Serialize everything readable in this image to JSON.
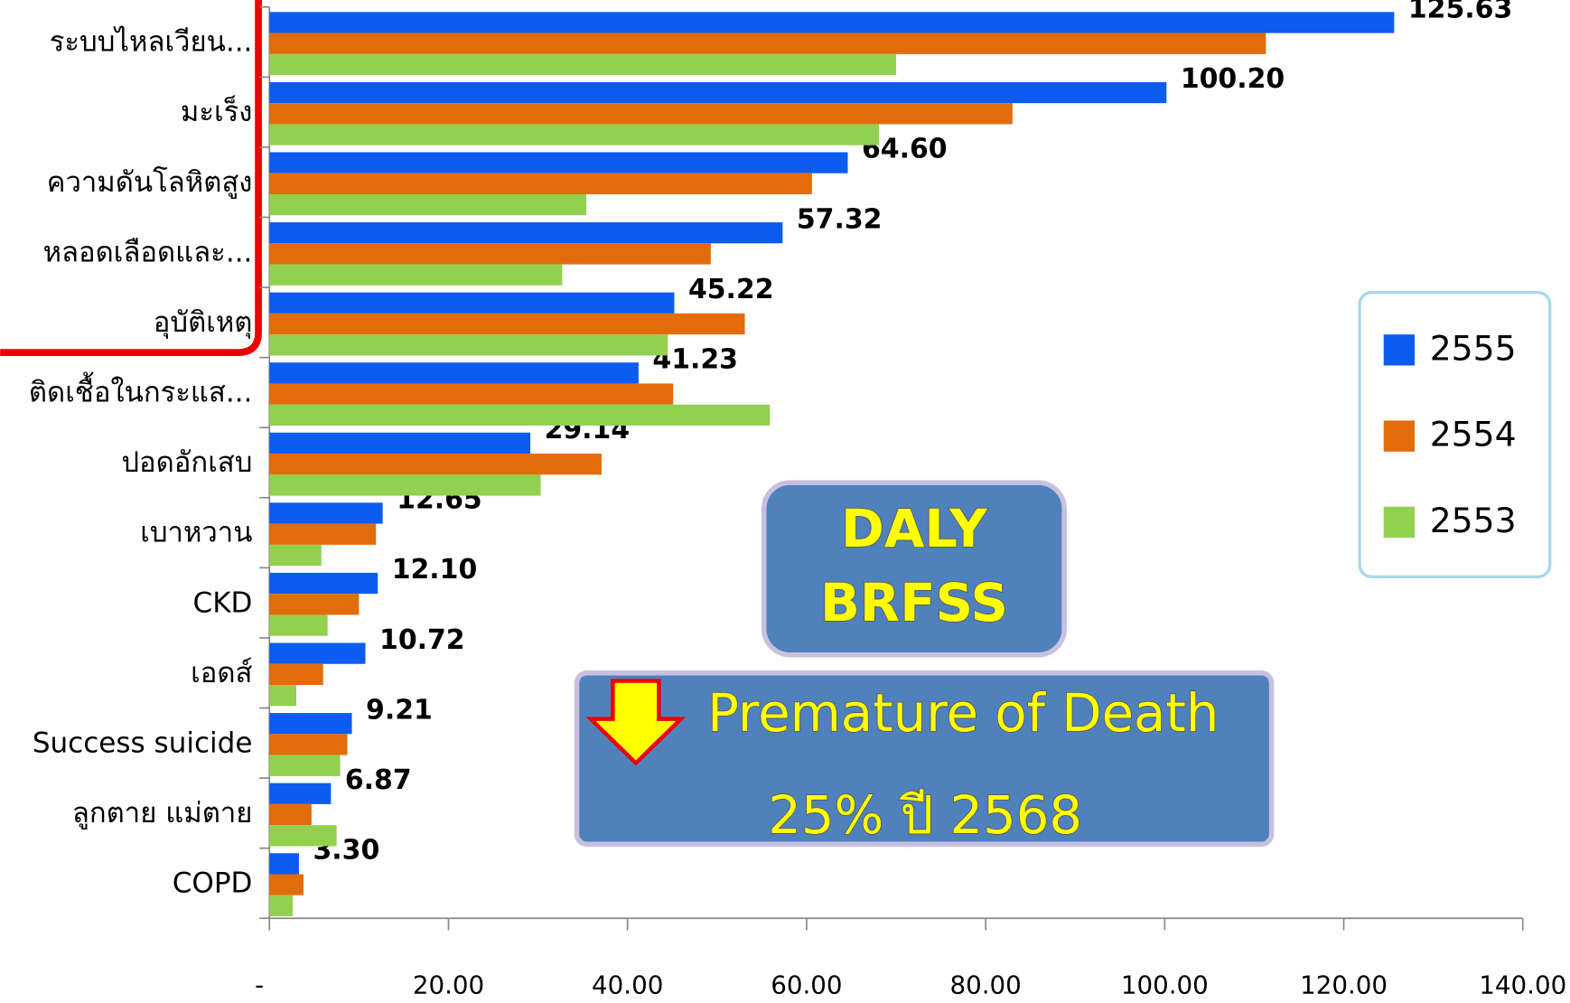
{
  "chart_data": {
    "type": "bar",
    "orientation": "horizontal",
    "categories": [
      "ระบบไหลเวียน...",
      "มะเร็ง",
      "ความดันโลหิตสูง",
      "หลอดเลือดและ...",
      "อุบัติเหตุ",
      "ติดเชื้อในกระแส...",
      "ปอดอักเสบ",
      "เบาหวาน",
      "CKD",
      "เอดส์",
      "Success suicide",
      "ลูกตาย แม่ตาย",
      "COPD"
    ],
    "series": [
      {
        "name": "2555",
        "color": "#0d5cf0",
        "values": [
          125.63,
          100.2,
          64.6,
          57.32,
          45.22,
          41.23,
          29.14,
          12.65,
          12.1,
          10.72,
          9.21,
          6.87,
          3.3
        ],
        "value_labels": [
          "125.63",
          "100.20",
          "64.60",
          "57.32",
          "45.22",
          "41.23",
          "29.14",
          "12.65",
          "12.10",
          "10.72",
          "9.21",
          "6.87",
          "3.30"
        ]
      },
      {
        "name": "2554",
        "color": "#e36c0a",
        "values": [
          111.3,
          83.0,
          60.6,
          49.3,
          53.1,
          45.1,
          37.1,
          11.9,
          10.0,
          6.0,
          8.7,
          4.7,
          3.8
        ]
      },
      {
        "name": "2553",
        "color": "#92d050",
        "values": [
          70.0,
          68.1,
          35.4,
          32.7,
          44.5,
          55.9,
          30.3,
          5.8,
          6.5,
          3.0,
          7.9,
          7.5,
          2.6
        ]
      }
    ],
    "xlim": [
      0,
      140
    ],
    "xticks": [
      {
        "value": 0,
        "label": "-"
      },
      {
        "value": 20,
        "label": "20.00"
      },
      {
        "value": 40,
        "label": "40.00"
      },
      {
        "value": 60,
        "label": "60.00"
      },
      {
        "value": 80,
        "label": "80.00"
      },
      {
        "value": 100,
        "label": "100.00"
      },
      {
        "value": 120,
        "label": "120.00"
      },
      {
        "value": 140,
        "label": "140.00"
      }
    ],
    "legend": "right",
    "annotations": [
      "DALY",
      "BRFSS",
      "Premature of Death",
      "25% ปี 2568"
    ]
  }
}
